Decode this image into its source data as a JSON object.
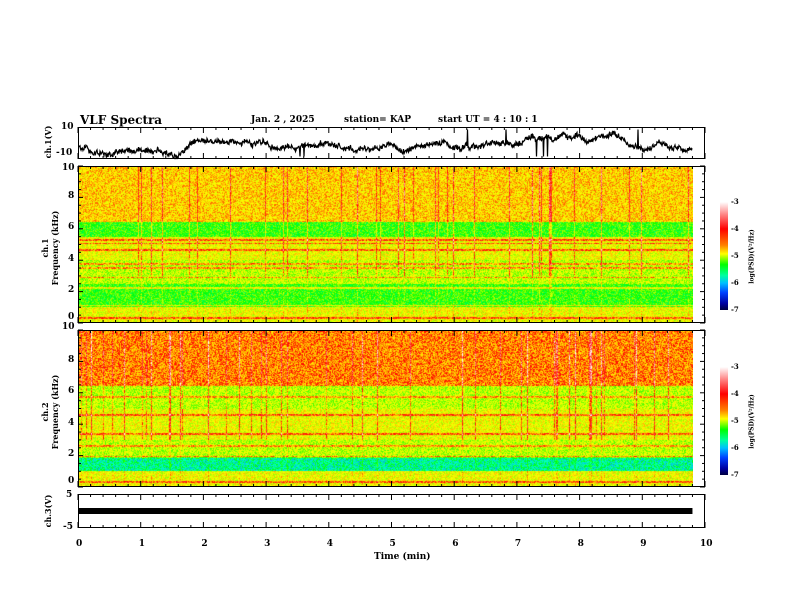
{
  "header": {
    "title": "VLF Spectra",
    "date": "Jan. 2 , 2025",
    "station": "station= KAP",
    "start": "start  UT =  4 : 10 : 1"
  },
  "colors": {
    "line": "#000000"
  },
  "chart_data": [
    {
      "type": "line",
      "name": "ch1-waveform",
      "ylabel": "ch.1(V)",
      "ylim": [
        -10,
        10
      ],
      "yticks": [
        "10",
        "-10"
      ],
      "xlim": [
        0,
        10
      ],
      "data_end": 9.8
    },
    {
      "type": "heatmap",
      "name": "ch1-spectrogram",
      "ylabel_top": "ch.1",
      "ylabel_main": "Frequency  (kHz)",
      "ylim": [
        0,
        10
      ],
      "yticks": [
        "0",
        "2",
        "4",
        "6",
        "8",
        "10"
      ],
      "xlim": [
        0,
        10
      ],
      "data_end": 9.8,
      "colorbar": {
        "label": "log(PSD)(V²/Hz)",
        "range": [
          -7,
          -3
        ],
        "ticks": [
          "-3",
          "-4",
          "-5",
          "-6",
          "-7"
        ]
      },
      "strong_lines_khz": [
        0.3,
        1.1,
        2.2,
        2.9,
        3.5,
        3.8,
        4.7,
        5.1,
        5.3
      ],
      "quiet_band_khz": [
        5.5,
        6.5
      ]
    },
    {
      "type": "heatmap",
      "name": "ch2-spectrogram",
      "ylabel_top": "ch.2",
      "ylabel_main": "Frequency  (kHz)",
      "ylim": [
        0,
        10
      ],
      "yticks": [
        "0",
        "2",
        "4",
        "6",
        "8",
        "10"
      ],
      "xlim": [
        0,
        10
      ],
      "data_end": 9.8,
      "colorbar": {
        "label": "log(PSD)(V²/Hz)",
        "range": [
          -7,
          -3
        ],
        "ticks": [
          "-3",
          "-4",
          "-5",
          "-6",
          "-7"
        ]
      },
      "strong_lines_khz": [
        0.3,
        1.9,
        2.6,
        3.4,
        4.6,
        5.8
      ],
      "quiet_band_khz": [
        1.0,
        1.8
      ]
    },
    {
      "type": "line",
      "name": "ch3-waveform",
      "ylabel": "ch.3(V)",
      "ylim": [
        -5,
        5
      ],
      "yticks": [
        "5",
        "-5"
      ],
      "xlim": [
        0,
        10
      ],
      "data_end": 9.8,
      "level": 0
    },
    {
      "xlabel": "Time  (min)",
      "xticks": [
        "0",
        "1",
        "2",
        "3",
        "4",
        "5",
        "6",
        "7",
        "8",
        "9",
        "10"
      ]
    }
  ]
}
